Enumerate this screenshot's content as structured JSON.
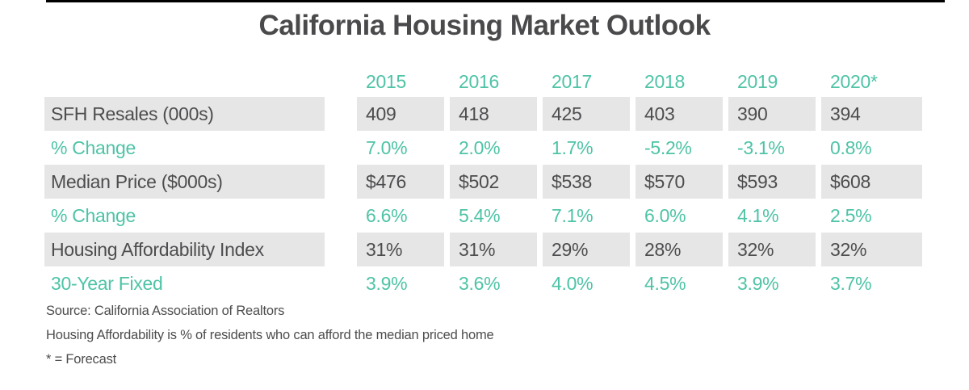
{
  "title": "California Housing Market Outlook",
  "table": {
    "years": [
      "2015",
      "2016",
      "2017",
      "2018",
      "2019",
      "2020*"
    ],
    "rows": [
      {
        "label": "SFH Resales (000s)",
        "values": [
          "409",
          "418",
          "425",
          "403",
          "390",
          "394"
        ]
      },
      {
        "label": "% Change",
        "values": [
          "7.0%",
          "2.0%",
          "1.7%",
          "-5.2%",
          "-3.1%",
          "0.8%"
        ]
      },
      {
        "label": "Median Price ($000s)",
        "values": [
          "$476",
          "$502",
          "$538",
          "$570",
          "$593",
          "$608"
        ]
      },
      {
        "label": "% Change",
        "values": [
          "6.6%",
          "5.4%",
          "7.1%",
          "6.0%",
          "4.1%",
          "2.5%"
        ]
      },
      {
        "label": "Housing Affordability Index",
        "values": [
          "31%",
          "31%",
          "29%",
          "28%",
          "32%",
          "32%"
        ]
      },
      {
        "label": "30-Year Fixed",
        "values": [
          "3.9%",
          "3.6%",
          "4.0%",
          "4.5%",
          "3.9%",
          "3.7%"
        ]
      }
    ]
  },
  "footnotes": [
    "Source:  California Association of Realtors",
    "Housing Affordability is % of residents who can afford the median priced home",
    "* = Forecast"
  ],
  "colors": {
    "accent_teal": "#4ec3a6",
    "row_band_gray": "#e6e6e7",
    "text_dark": "#4d4d4f",
    "top_bar_black": "#000000"
  }
}
